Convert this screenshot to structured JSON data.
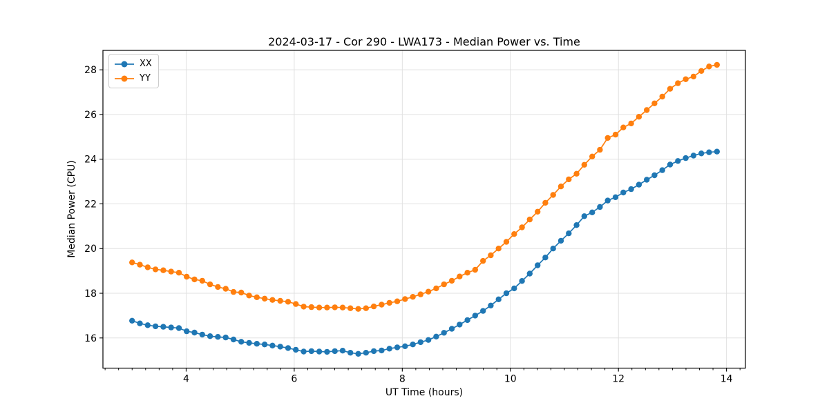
{
  "figure": {
    "title": "2024-03-17 - Cor 290 - LWA173 - Median Power vs. Time",
    "xlabel": "UT Time (hours)",
    "ylabel": "Median Power (CPU)"
  },
  "legend": {
    "position": "upper left",
    "items": [
      {
        "label": "XX",
        "color": "#1f77b4"
      },
      {
        "label": "YY",
        "color": "#ff7f0e"
      }
    ]
  },
  "chart_data": {
    "type": "line",
    "title": "2024-03-17 - Cor 290 - LWA173 - Median Power vs. Time",
    "xlabel": "UT Time (hours)",
    "ylabel": "Median Power (CPU)",
    "grid": true,
    "legend_position": "upper left",
    "marker": "o",
    "xlim": [
      2.46,
      14.35
    ],
    "ylim": [
      14.65,
      28.87
    ],
    "xticks": [
      4,
      6,
      8,
      10,
      12,
      14
    ],
    "yticks": [
      16,
      18,
      20,
      22,
      24,
      26,
      28
    ],
    "x_minor_step": 0.25,
    "x": [
      3.0,
      3.144,
      3.289,
      3.433,
      3.577,
      3.722,
      3.866,
      4.01,
      4.154,
      4.299,
      4.443,
      4.587,
      4.732,
      4.876,
      5.02,
      5.165,
      5.309,
      5.453,
      5.597,
      5.742,
      5.886,
      6.03,
      6.175,
      6.319,
      6.463,
      6.608,
      6.752,
      6.896,
      7.04,
      7.185,
      7.329,
      7.473,
      7.618,
      7.762,
      7.906,
      8.051,
      8.195,
      8.339,
      8.483,
      8.628,
      8.772,
      8.916,
      9.061,
      9.205,
      9.349,
      9.494,
      9.638,
      9.782,
      9.926,
      10.071,
      10.215,
      10.359,
      10.504,
      10.648,
      10.792,
      10.937,
      11.081,
      11.225,
      11.369,
      11.514,
      11.658,
      11.802,
      11.947,
      12.091,
      12.235,
      12.38,
      12.524,
      12.668,
      12.812,
      12.957,
      13.101,
      13.245,
      13.39,
      13.534,
      13.678,
      13.823
    ],
    "series": [
      {
        "name": "XX",
        "color": "#1f77b4",
        "values": [
          16.77,
          16.65,
          16.57,
          16.52,
          16.5,
          16.47,
          16.44,
          16.3,
          16.24,
          16.15,
          16.08,
          16.05,
          16.02,
          15.93,
          15.83,
          15.78,
          15.74,
          15.71,
          15.66,
          15.61,
          15.55,
          15.47,
          15.39,
          15.41,
          15.39,
          15.38,
          15.41,
          15.43,
          15.34,
          15.29,
          15.34,
          15.41,
          15.44,
          15.52,
          15.58,
          15.63,
          15.71,
          15.81,
          15.91,
          16.06,
          16.23,
          16.41,
          16.6,
          16.8,
          17.0,
          17.21,
          17.45,
          17.73,
          18.0,
          18.22,
          18.55,
          18.88,
          19.25,
          19.6,
          20.0,
          20.35,
          20.68,
          21.05,
          21.45,
          21.62,
          21.86,
          22.15,
          22.3,
          22.51,
          22.66,
          22.86,
          23.08,
          23.28,
          23.51,
          23.76,
          23.92,
          24.05,
          24.16,
          24.26,
          24.31,
          24.34
        ]
      },
      {
        "name": "YY",
        "color": "#ff7f0e",
        "values": [
          19.38,
          19.28,
          19.16,
          19.07,
          19.03,
          18.97,
          18.92,
          18.74,
          18.62,
          18.56,
          18.4,
          18.28,
          18.2,
          18.06,
          18.03,
          17.9,
          17.82,
          17.76,
          17.7,
          17.66,
          17.62,
          17.52,
          17.4,
          17.38,
          17.36,
          17.36,
          17.37,
          17.36,
          17.33,
          17.3,
          17.33,
          17.41,
          17.49,
          17.57,
          17.64,
          17.74,
          17.84,
          17.95,
          18.07,
          18.22,
          18.4,
          18.56,
          18.75,
          18.92,
          19.05,
          19.45,
          19.7,
          20.0,
          20.3,
          20.65,
          20.95,
          21.3,
          21.65,
          22.05,
          22.4,
          22.78,
          23.1,
          23.35,
          23.75,
          24.12,
          24.42,
          24.95,
          25.1,
          25.42,
          25.6,
          25.9,
          26.2,
          26.5,
          26.8,
          27.15,
          27.4,
          27.58,
          27.7,
          27.95,
          28.15,
          28.22
        ]
      }
    ]
  }
}
